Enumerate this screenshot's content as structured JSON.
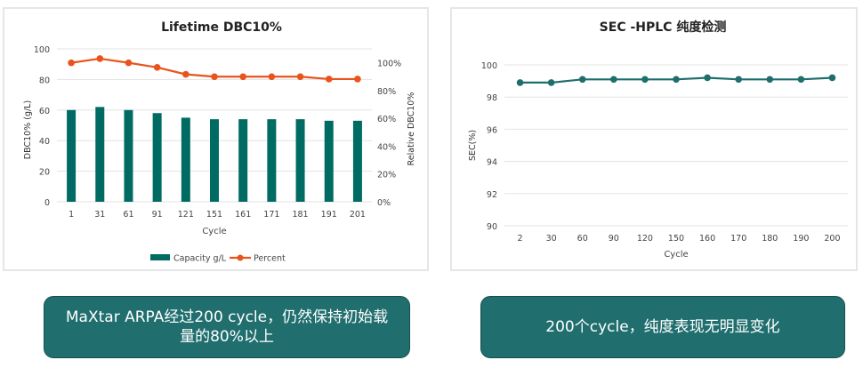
{
  "chart_data": [
    {
      "type": "bar+line",
      "title": "Lifetime DBC10%",
      "xlabel": "Cycle",
      "ylabel": "DBC10% (g/L)",
      "y2label": "Relative DBC10%",
      "categories": [
        "1",
        "31",
        "61",
        "91",
        "121",
        "151",
        "161",
        "171",
        "181",
        "191",
        "201"
      ],
      "ylim": [
        0,
        100
      ],
      "yticks": [
        "0",
        "20",
        "40",
        "60",
        "80",
        "100"
      ],
      "y2lim": [
        0,
        110
      ],
      "y2ticks": [
        "0%",
        "20%",
        "40%",
        "60%",
        "80%",
        "100%"
      ],
      "grid": true,
      "legend_position": "bottom",
      "series": [
        {
          "name": "Capacity g/L",
          "kind": "bar",
          "axis": "left",
          "color": "#006b63",
          "values": [
            60,
            62,
            60,
            58,
            55,
            54,
            54,
            54,
            54,
            53,
            53
          ]
        },
        {
          "name": "Percent",
          "kind": "line",
          "axis": "right",
          "color": "#e8541c",
          "values": [
            100,
            103,
            100,
            96.7,
            91.7,
            90,
            90,
            90,
            90,
            88.3,
            88.3
          ]
        }
      ]
    },
    {
      "type": "line",
      "title": "SEC -HPLC  纯度检测",
      "xlabel": "Cycle",
      "ylabel": "SEC(%)",
      "categories": [
        "2",
        "30",
        "60",
        "90",
        "120",
        "150",
        "160",
        "170",
        "180",
        "190",
        "200"
      ],
      "ylim": [
        90,
        100
      ],
      "yticks": [
        "90",
        "92",
        "94",
        "96",
        "98",
        "100"
      ],
      "grid": true,
      "series": [
        {
          "name": "SEC",
          "color": "#1f6e6c",
          "values": [
            98.9,
            98.9,
            99.1,
            99.1,
            99.1,
            99.1,
            99.2,
            99.1,
            99.1,
            99.1,
            99.2
          ]
        }
      ]
    }
  ],
  "captions": {
    "left": "MaXtar ARPA经过200 cycle，仍然保持初始载量的80%以上",
    "right": "200个cycle，纯度表现无明显变化"
  }
}
